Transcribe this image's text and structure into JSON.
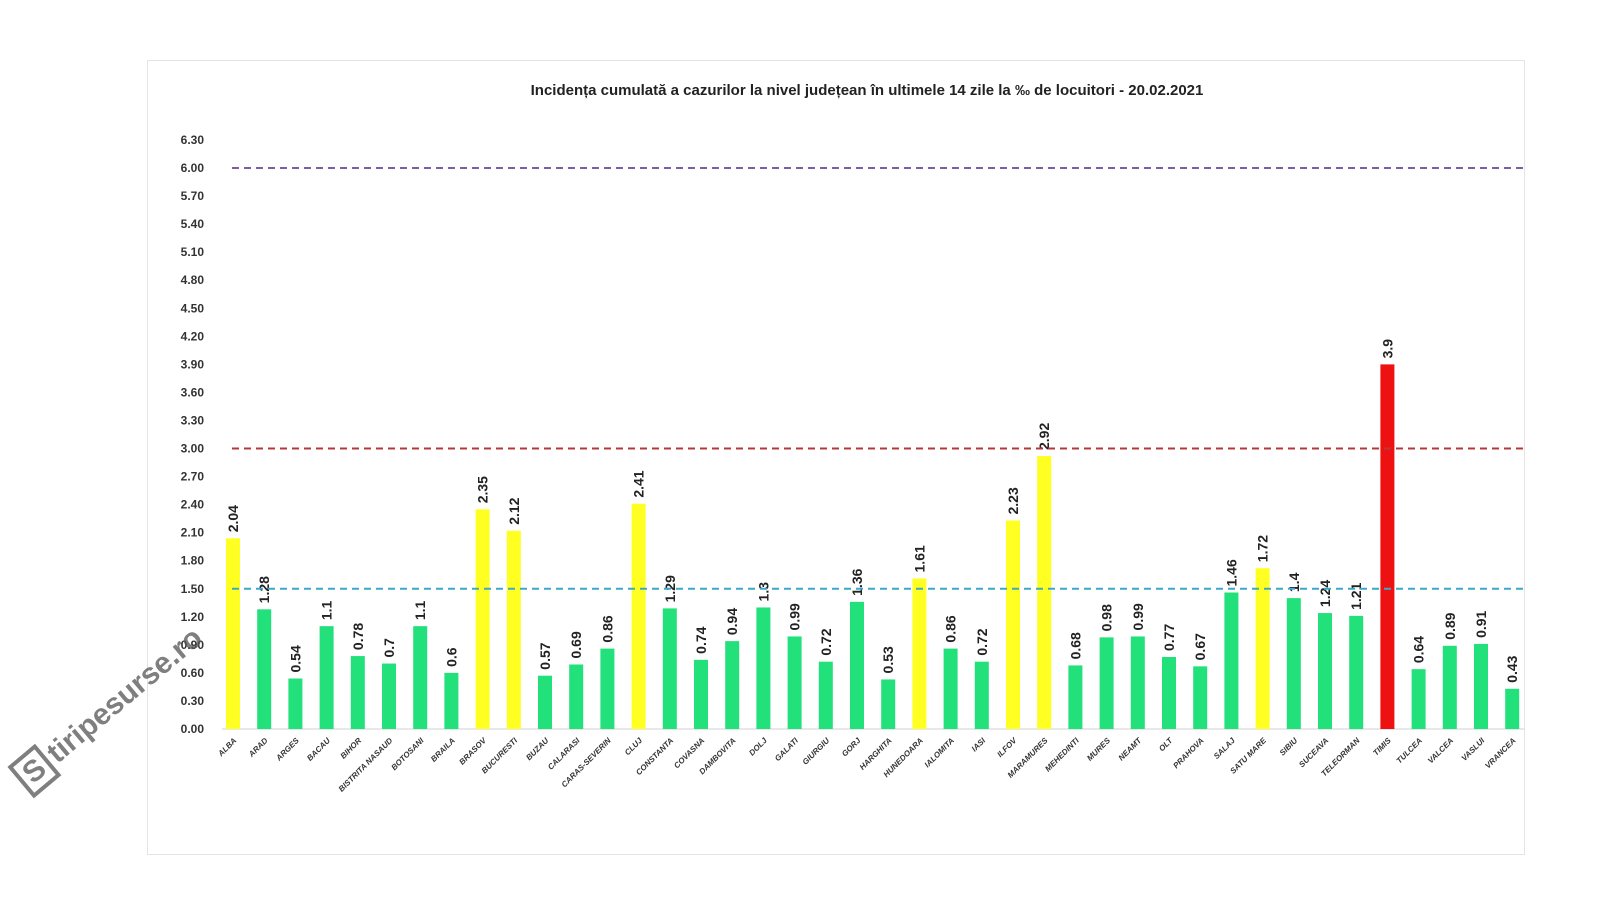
{
  "chart_data": {
    "type": "bar",
    "title": "Incidența cumulată a cazurilor la nivel județean în ultimele 14 zile la ‰ de locuitori - 20.02.2021",
    "categories": [
      "ALBA",
      "ARAD",
      "ARGES",
      "BACAU",
      "BIHOR",
      "BISTRITA NASAUD",
      "BOTOSANI",
      "BRAILA",
      "BRASOV",
      "BUCURESTI",
      "BUZAU",
      "CALARASI",
      "CARAS-SEVERIN",
      "CLUJ",
      "CONSTANTA",
      "COVASNA",
      "DAMBOVITA",
      "DOLJ",
      "GALATI",
      "GIURGIU",
      "GORJ",
      "HARGHITA",
      "HUNEDOARA",
      "IALOMITA",
      "IASI",
      "ILFOV",
      "MARAMURES",
      "MEHEDINTI",
      "MURES",
      "NEAMT",
      "OLT",
      "PRAHOVA",
      "SALAJ",
      "SATU MARE",
      "SIBIU",
      "SUCEAVA",
      "TELEORMAN",
      "TIMIS",
      "TULCEA",
      "VALCEA",
      "VASLUI",
      "VRANCEA"
    ],
    "values": [
      2.04,
      1.28,
      0.54,
      1.1,
      0.78,
      0.7,
      1.1,
      0.6,
      2.35,
      2.12,
      0.57,
      0.69,
      0.86,
      2.41,
      1.29,
      0.74,
      0.94,
      1.3,
      0.99,
      0.72,
      1.36,
      0.53,
      1.61,
      0.86,
      0.72,
      2.23,
      2.92,
      0.68,
      0.98,
      0.99,
      0.77,
      0.67,
      1.46,
      1.72,
      1.4,
      1.24,
      1.21,
      3.9,
      0.64,
      0.89,
      0.91,
      0.43
    ],
    "ylim": [
      0,
      6.3
    ],
    "yticks": [
      "0.00",
      "0.30",
      "0.60",
      "0.90",
      "1.20",
      "1.50",
      "1.80",
      "2.10",
      "2.40",
      "2.70",
      "3.00",
      "3.30",
      "3.60",
      "3.90",
      "4.20",
      "4.50",
      "4.80",
      "5.10",
      "5.40",
      "5.70",
      "6.00",
      "6.30"
    ],
    "thresholds": [
      {
        "value": 6.0,
        "color": "#7b5fa0"
      },
      {
        "value": 3.0,
        "color": "#b33a3a"
      },
      {
        "value": 1.5,
        "color": "#3aa9c9"
      }
    ],
    "colors": {
      "low": "#22e07a",
      "mid": "#ffff22",
      "high": "#ee1111"
    },
    "grid": false,
    "legend": "none"
  },
  "watermark": "stiripesurse.ro"
}
